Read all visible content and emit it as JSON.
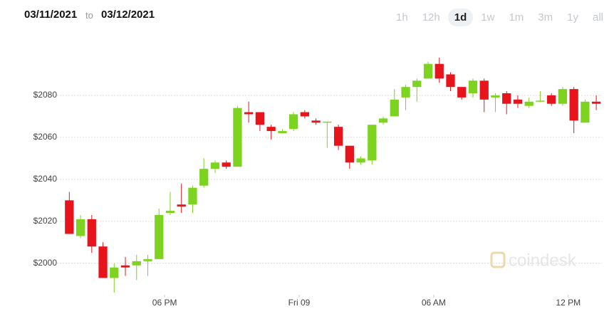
{
  "header": {
    "date_from": "03/11/2021",
    "to": "to",
    "date_to": "03/12/2021",
    "ranges": [
      "1h",
      "12h",
      "1d",
      "1w",
      "1m",
      "3m",
      "1y",
      "all"
    ],
    "active_range": "1d"
  },
  "watermark": "coindesk",
  "chart_data": {
    "type": "candlestick",
    "up_color": "#7ed321",
    "down_color": "#e8141b",
    "grid": true,
    "x": [
      13.75,
      14.25,
      14.75,
      15.25,
      15.75,
      16.25,
      16.75,
      17.25,
      17.75,
      18.25,
      18.75,
      19.25,
      19.75,
      20.25,
      20.75,
      21.25,
      21.75,
      22.25,
      22.75,
      23.25,
      23.75,
      24.25,
      24.75,
      25.25,
      25.75,
      26.25,
      26.75,
      27.25,
      27.75,
      28.25,
      28.75,
      29.25,
      29.75,
      30.25,
      30.75,
      31.25,
      31.75,
      32.25,
      32.75,
      33.25,
      33.75,
      34.25,
      34.75,
      35.25,
      35.75,
      36.25,
      36.75,
      37.25
    ],
    "open": [
      2030,
      2013,
      2021,
      2008,
      1993,
      1999,
      1999,
      2001,
      2002,
      2024,
      2028,
      2028,
      2037,
      2045,
      2048,
      2046,
      2072,
      2072,
      2065,
      2062,
      2064,
      2072,
      2068,
      2067,
      2065,
      2056,
      2048,
      2049,
      2067,
      2070,
      2079,
      2084,
      2088,
      2095,
      2090,
      2084,
      2081,
      2087,
      2079,
      2081,
      2078,
      2075,
      2077,
      2080,
      2076,
      2083,
      2067,
      2077
    ],
    "high": [
      2034,
      2023,
      2023,
      2010,
      2000,
      2003,
      2004,
      2004,
      2026,
      2034,
      2038,
      2037,
      2050,
      2049,
      2049,
      2075,
      2077,
      2072,
      2066,
      2064,
      2072,
      2073,
      2069,
      2067,
      2066,
      2056,
      2051,
      2066,
      2070,
      2083,
      2085,
      2088,
      2096,
      2098,
      2091,
      2084,
      2088,
      2088,
      2081,
      2082,
      2080,
      2079,
      2082,
      2081,
      2084,
      2084,
      2078,
      2080
    ],
    "low": [
      2014,
      2012,
      2005,
      1993,
      1986,
      1994,
      1992,
      1994,
      2002,
      2023,
      2024,
      2024,
      2036,
      2043,
      2045,
      2046,
      2067,
      2063,
      2059,
      2062,
      2063,
      2069,
      2066,
      2055,
      2054,
      2045,
      2047,
      2047,
      2066,
      2070,
      2073,
      2077,
      2088,
      2086,
      2082,
      2078,
      2079,
      2072,
      2072,
      2071,
      2074,
      2074,
      2077,
      2075,
      2075,
      2062,
      2067,
      2073
    ],
    "close": [
      2014,
      2021,
      2008,
      1993,
      1998,
      1998,
      2001,
      2002,
      2023,
      2025,
      2027,
      2036,
      2045,
      2048,
      2046,
      2074,
      2071,
      2066,
      2063,
      2063,
      2071,
      2070,
      2067,
      2067.5,
      2056,
      2048,
      2050,
      2066,
      2069,
      2078,
      2084,
      2087,
      2095,
      2088,
      2084,
      2079,
      2087,
      2078,
      2080,
      2076,
      2076,
      2077,
      2077.5,
      2076,
      2083,
      2068,
      2077,
      2076
    ],
    "xlim": [
      13.2,
      37.5
    ],
    "xticks": [
      {
        "value": 18,
        "label": "06 PM"
      },
      {
        "value": 24,
        "label": "Fri 09"
      },
      {
        "value": 30,
        "label": "06 AM"
      },
      {
        "value": 36,
        "label": "12 PM"
      }
    ],
    "ylim": [
      1985,
      2110
    ],
    "yticks": [
      {
        "value": 2000,
        "label": "$2000"
      },
      {
        "value": 2020,
        "label": "$2020"
      },
      {
        "value": 2040,
        "label": "$2040"
      },
      {
        "value": 2060,
        "label": "$2060"
      },
      {
        "value": 2080,
        "label": "$2080"
      }
    ]
  }
}
